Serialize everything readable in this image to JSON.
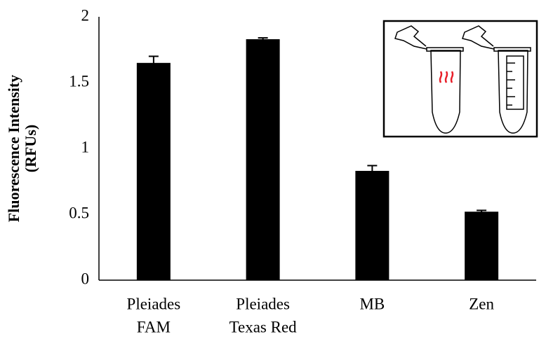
{
  "chart_data": {
    "type": "bar",
    "y_label": [
      "Fluorescence Intensity",
      "(RFUs)"
    ],
    "categories": [
      [
        "Pleiades",
        "FAM"
      ],
      [
        "Pleiades",
        "Texas Red"
      ],
      [
        "MB"
      ],
      [
        "Zen"
      ]
    ],
    "values": [
      1.65,
      1.83,
      0.83,
      0.52
    ],
    "errors": [
      0.05,
      0.01,
      0.04,
      0.01
    ],
    "color": "#000000",
    "ylim": [
      0,
      2
    ],
    "yticks": [
      0,
      0.5,
      1,
      1.5,
      2
    ],
    "grid": false
  }
}
